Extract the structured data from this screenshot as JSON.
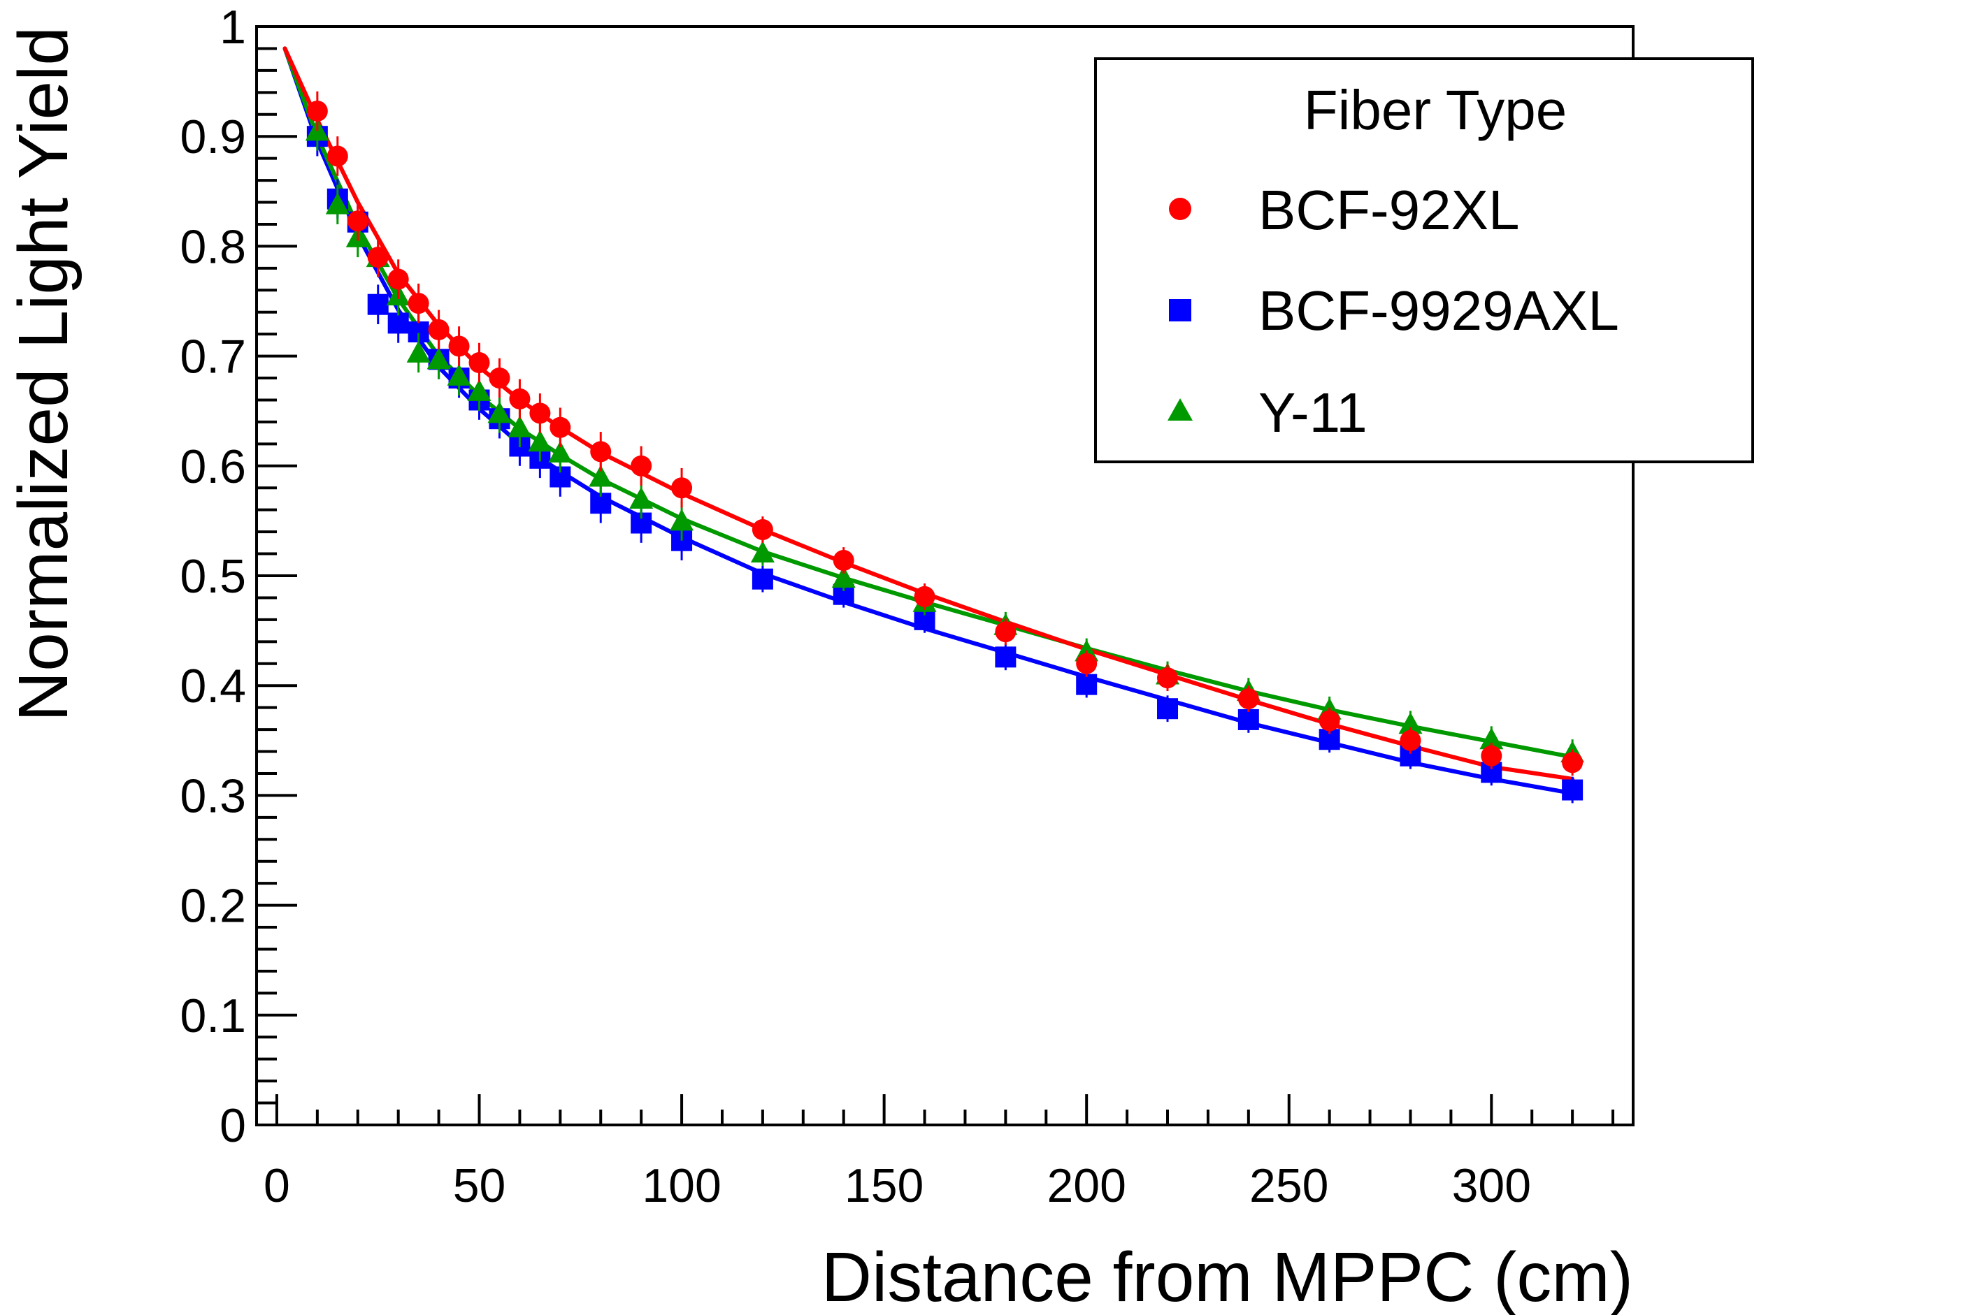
{
  "chart_data": {
    "type": "scatter",
    "title": "",
    "xlabel": "Distance from MPPC (cm)",
    "ylabel": "Normalized Light Yield",
    "xlim": [
      -5,
      335
    ],
    "ylim": [
      0,
      1
    ],
    "x_ticks": [
      0,
      50,
      100,
      150,
      200,
      250,
      300
    ],
    "x_tick_labels": [
      "0",
      "50",
      "100",
      "150",
      "200",
      "250",
      "300"
    ],
    "y_ticks": [
      0,
      0.1,
      0.2,
      0.3,
      0.4,
      0.5,
      0.6,
      0.7,
      0.8,
      0.9,
      1
    ],
    "y_tick_labels": [
      "0",
      "0.1",
      "0.2",
      "0.3",
      "0.4",
      "0.5",
      "0.6",
      "0.7",
      "0.8",
      "0.9",
      "1"
    ],
    "legend": {
      "title": "Fiber Type",
      "position": "top-right"
    },
    "series": [
      {
        "name": "BCF-92XL",
        "marker": "circle",
        "color": "#ff0000",
        "x": [
          10,
          15,
          20,
          25,
          30,
          35,
          40,
          45,
          50,
          55,
          60,
          65,
          70,
          80,
          90,
          100,
          120,
          140,
          160,
          180,
          200,
          220,
          240,
          260,
          280,
          300,
          320
        ],
        "y": [
          0.923,
          0.882,
          0.823,
          0.79,
          0.77,
          0.748,
          0.724,
          0.709,
          0.694,
          0.68,
          0.661,
          0.648,
          0.635,
          0.613,
          0.6,
          0.58,
          0.542,
          0.514,
          0.481,
          0.449,
          0.42,
          0.407,
          0.388,
          0.368,
          0.35,
          0.336,
          0.33
        ],
        "fit": [
          [
            2,
            0.98
          ],
          [
            10,
            0.915
          ],
          [
            20,
            0.84
          ],
          [
            30,
            0.775
          ],
          [
            40,
            0.728
          ],
          [
            50,
            0.69
          ],
          [
            60,
            0.66
          ],
          [
            70,
            0.635
          ],
          [
            80,
            0.612
          ],
          [
            100,
            0.575
          ],
          [
            120,
            0.542
          ],
          [
            140,
            0.512
          ],
          [
            160,
            0.484
          ],
          [
            180,
            0.458
          ],
          [
            200,
            0.433
          ],
          [
            220,
            0.41
          ],
          [
            240,
            0.387
          ],
          [
            260,
            0.365
          ],
          [
            280,
            0.345
          ],
          [
            300,
            0.326
          ],
          [
            320,
            0.315
          ]
        ]
      },
      {
        "name": "BCF-9929AXL",
        "marker": "square",
        "color": "#0000ff",
        "x": [
          10,
          15,
          20,
          25,
          30,
          35,
          40,
          45,
          50,
          55,
          60,
          65,
          70,
          80,
          90,
          100,
          120,
          140,
          160,
          180,
          200,
          220,
          240,
          260,
          280,
          300,
          320
        ],
        "y": [
          0.9,
          0.843,
          0.822,
          0.747,
          0.73,
          0.722,
          0.697,
          0.68,
          0.66,
          0.643,
          0.618,
          0.607,
          0.59,
          0.566,
          0.548,
          0.532,
          0.497,
          0.483,
          0.46,
          0.426,
          0.401,
          0.379,
          0.369,
          0.351,
          0.336,
          0.321,
          0.305
        ],
        "fit": [
          [
            2,
            0.98
          ],
          [
            10,
            0.895
          ],
          [
            20,
            0.81
          ],
          [
            30,
            0.742
          ],
          [
            40,
            0.69
          ],
          [
            50,
            0.652
          ],
          [
            60,
            0.62
          ],
          [
            70,
            0.595
          ],
          [
            80,
            0.572
          ],
          [
            100,
            0.535
          ],
          [
            120,
            0.502
          ],
          [
            140,
            0.476
          ],
          [
            160,
            0.452
          ],
          [
            180,
            0.43
          ],
          [
            200,
            0.408
          ],
          [
            220,
            0.387
          ],
          [
            240,
            0.366
          ],
          [
            260,
            0.348
          ],
          [
            280,
            0.33
          ],
          [
            300,
            0.315
          ],
          [
            320,
            0.302
          ]
        ]
      },
      {
        "name": "Y-11",
        "marker": "triangle",
        "color": "#009900",
        "x": [
          10,
          15,
          20,
          25,
          30,
          35,
          40,
          45,
          50,
          55,
          60,
          65,
          70,
          80,
          90,
          100,
          120,
          140,
          160,
          180,
          200,
          220,
          240,
          260,
          280,
          300,
          320
        ],
        "y": [
          0.905,
          0.838,
          0.808,
          0.79,
          0.755,
          0.703,
          0.697,
          0.682,
          0.668,
          0.648,
          0.635,
          0.622,
          0.612,
          0.59,
          0.57,
          0.55,
          0.521,
          0.498,
          0.476,
          0.455,
          0.431,
          0.41,
          0.395,
          0.378,
          0.365,
          0.351,
          0.339
        ],
        "fit": [
          [
            2,
            0.98
          ],
          [
            10,
            0.9
          ],
          [
            20,
            0.818
          ],
          [
            30,
            0.752
          ],
          [
            40,
            0.7
          ],
          [
            50,
            0.664
          ],
          [
            60,
            0.634
          ],
          [
            70,
            0.61
          ],
          [
            80,
            0.588
          ],
          [
            100,
            0.552
          ],
          [
            120,
            0.522
          ],
          [
            140,
            0.498
          ],
          [
            160,
            0.476
          ],
          [
            180,
            0.455
          ],
          [
            200,
            0.434
          ],
          [
            220,
            0.414
          ],
          [
            240,
            0.395
          ],
          [
            260,
            0.378
          ],
          [
            280,
            0.363
          ],
          [
            300,
            0.349
          ],
          [
            320,
            0.335
          ]
        ]
      }
    ]
  }
}
